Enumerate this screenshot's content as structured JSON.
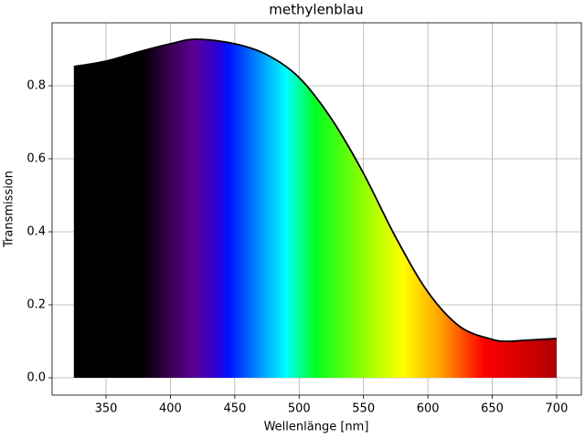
{
  "chart_data": {
    "type": "line",
    "title": "methylenblau",
    "x_label": "Wellenlänge [nm]",
    "y_label": "Transmission",
    "x": [
      325,
      350,
      375,
      400,
      420,
      450,
      475,
      500,
      525,
      550,
      575,
      600,
      625,
      650,
      662,
      675,
      700
    ],
    "series": [
      {
        "name": "methylenblau",
        "color": "#000000",
        "values": [
          0.8525,
          0.8675,
          0.8925,
          0.915,
          0.9275,
          0.915,
          0.885,
          0.8225,
          0.71,
          0.56,
          0.385,
          0.235,
          0.14,
          0.105,
          0.1,
          0.1025,
          0.1075
        ]
      }
    ],
    "xlim": [
      308.1,
      719.2
    ],
    "ylim": [
      -0.0475,
      0.9725
    ],
    "xticks": [
      350,
      400,
      450,
      500,
      550,
      600,
      650,
      700
    ],
    "yticks": [
      {
        "value": 0,
        "label": "0.0"
      },
      0.2,
      0.4,
      0.6,
      0.8
    ],
    "grid": true
  }
}
